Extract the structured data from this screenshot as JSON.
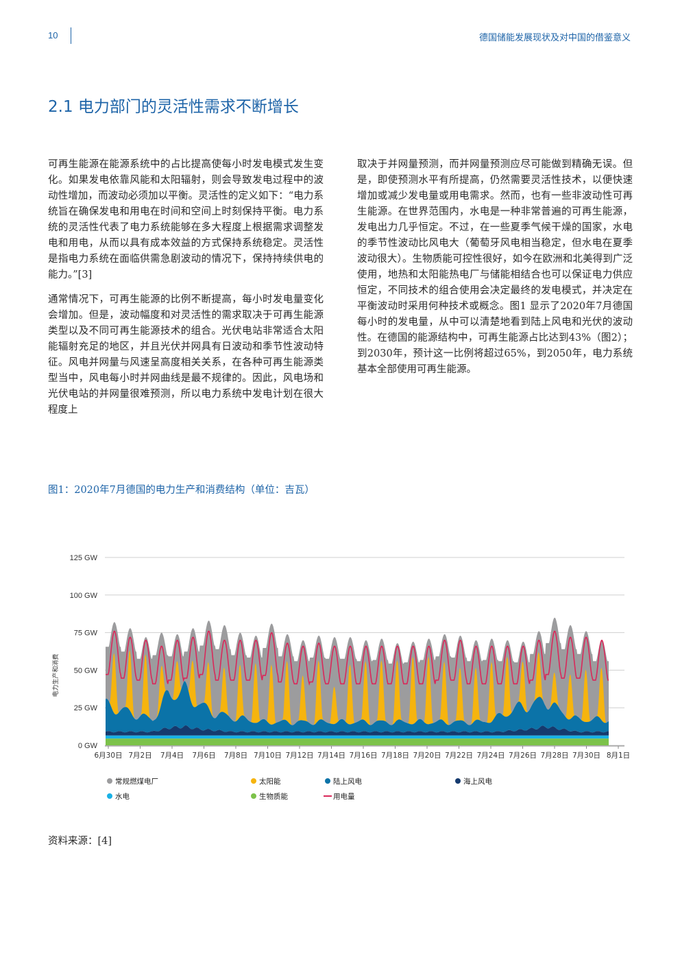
{
  "header": {
    "page_number": "10",
    "title": "德国储能发展现状及对中国的借鉴意义"
  },
  "section": {
    "title": "2.1 电力部门的灵活性需求不断增长"
  },
  "body": {
    "left_paragraphs": [
      "可再生能源在能源系统中的占比提高使每小时发电模式发生变化。如果发电依靠风能和太阳辐射，则会导致发电过程中的波动性增加，而波动必须加以平衡。灵活性的定义如下：“电力系统旨在确保发电和用电在时间和空间上时刻保持平衡。电力系统的灵活性代表了电力系统能够在多大程度上根据需求调整发电和用电，从而以具有成本效益的方式保持系统稳定。灵活性是指电力系统在面临供需急剧波动的情况下，保持持续供电的能力。”[3]",
      "通常情况下，可再生能源的比例不断提高，每小时发电量变化会增加。但是，波动幅度和对灵活性的需求取决于可再生能源类型以及不同可再生能源技术的组合。光伏电站非常适合太阳能辐射充足的地区，并且光伏并网具有日波动和季节性波动特征。风电并网量与风速呈高度相关关系，在各种可再生能源类型当中，风电每小时并网曲线是最不规律的。因此，风电场和光伏电站的并网量很难预测，所以电力系统中发电计划在很大程度上"
    ],
    "right_paragraphs": [
      "取决于并网量预测，而并网量预测应尽可能做到精确无误。但是，即使预测水平有所提高，仍然需要灵活性技术，以便快速增加或减少发电量或用电需求。然而，也有一些非波动性可再生能源。在世界范围内，水电是一种非常普遍的可再生能源，发电出力几乎恒定。不过，在一些夏季气候干燥的国家，水电的季节性波动比风电大（葡萄牙风电相当稳定，但水电在夏季波动很大）。生物质能可控性很好，如今在欧洲和北美得到广泛使用，地热和太阳能热电厂与储能相结合也可以保证电力供应恒定，不同技术的组合使用会决定最终的发电模式，并决定在平衡波动时采用何种技术或概念。图1 显示了2020年7月德国每小时的发电量，从中可以清楚地看到陆上风电和光伏的波动性。在德国的能源结构中，可再生能源占比达到43%（图2）；到2030年，预计这一比例将超过65%，到2050年，电力系统基本全部使用可再生能源。"
    ]
  },
  "figure": {
    "caption": "图1：2020年7月德国的电力生产和消费结构（单位：吉瓦）",
    "source": "资料来源：[4]"
  },
  "colors": {
    "accent": "#1e64a8",
    "conventional": "#9c9c9e",
    "solar": "#f6b40e",
    "wind_onshore": "#0b73a8",
    "wind_offshore": "#153a6e",
    "hydro": "#19b1e6",
    "biomass": "#7cc24a",
    "consumption": "#d9285a"
  },
  "chart_data": {
    "type": "area",
    "title": "",
    "ylabel": "电力生产和消费",
    "xlabel": "",
    "ylim": [
      0,
      125
    ],
    "grid": true,
    "legend_placement": "bottom",
    "y_ticks": [
      "0 GW",
      "25 GW",
      "50 GW",
      "75 GW",
      "100 GW",
      "125 GW"
    ],
    "x_ticks": [
      "6月30日",
      "7月2日",
      "7月4日",
      "7月6日",
      "7月8日",
      "7月10日",
      "7月12日",
      "7月14日",
      "7月16日",
      "7月18日",
      "7月20日",
      "7月22日",
      "7月24日",
      "7月26日",
      "7月28日",
      "7月30日",
      "8月1日"
    ],
    "days": [
      "6月30日",
      "7月1日",
      "7月2日",
      "7月3日",
      "7月4日",
      "7月5日",
      "7月6日",
      "7月7日",
      "7月8日",
      "7月9日",
      "7月10日",
      "7月11日",
      "7月12日",
      "7月13日",
      "7月14日",
      "7月15日",
      "7月16日",
      "7月17日",
      "7月18日",
      "7月19日",
      "7月20日",
      "7月21日",
      "7月22日",
      "7月23日",
      "7月24日",
      "7月25日",
      "7月26日",
      "7月27日",
      "7月28日",
      "7月29日",
      "7月30日",
      "7月31日"
    ],
    "series": [
      {
        "name": "常规燃煤电厂",
        "key": "conventional",
        "daily_peak_total": [
          82,
          78,
          72,
          75,
          74,
          78,
          83,
          80,
          75,
          73,
          81,
          74,
          70,
          73,
          72,
          72,
          70,
          71,
          68,
          69,
          71,
          74,
          73,
          70,
          71,
          70,
          69,
          76,
          85,
          80,
          76,
          70
        ]
      },
      {
        "name": "太阳能",
        "key": "solar",
        "daily_peak": [
          40,
          40,
          40,
          25,
          25,
          30,
          30,
          30,
          35,
          40,
          40,
          40,
          30,
          40,
          25,
          40,
          40,
          40,
          40,
          45,
          45,
          40,
          35,
          35,
          40,
          40,
          30,
          30,
          20,
          30,
          35,
          35
        ]
      },
      {
        "name": "陆上风电",
        "key": "wind_onshore",
        "daily_level": [
          22,
          18,
          14,
          10,
          28,
          30,
          20,
          14,
          12,
          10,
          8,
          8,
          8,
          8,
          8,
          8,
          8,
          8,
          8,
          8,
          8,
          8,
          8,
          8,
          8,
          12,
          18,
          20,
          22,
          14,
          10,
          10
        ]
      },
      {
        "name": "海上风电",
        "key": "wind_offshore",
        "daily_level": [
          3,
          3,
          3,
          3,
          6,
          7,
          5,
          4,
          3,
          3,
          3,
          3,
          3,
          3,
          3,
          3,
          3,
          3,
          3,
          3,
          3,
          3,
          3,
          3,
          3,
          3,
          4,
          5,
          7,
          5,
          3,
          3
        ]
      },
      {
        "name": "水电",
        "key": "hydro",
        "constant": 2
      },
      {
        "name": "生物质能",
        "key": "biomass",
        "constant": 4.5
      },
      {
        "name": "用电量",
        "key": "consumption",
        "daily_peak": [
          76,
          72,
          70,
          66,
          70,
          72,
          76,
          70,
          70,
          70,
          75,
          68,
          66,
          68,
          66,
          66,
          66,
          66,
          66,
          66,
          66,
          70,
          70,
          66,
          66,
          66,
          66,
          70,
          76,
          72,
          72,
          70
        ]
      }
    ]
  }
}
